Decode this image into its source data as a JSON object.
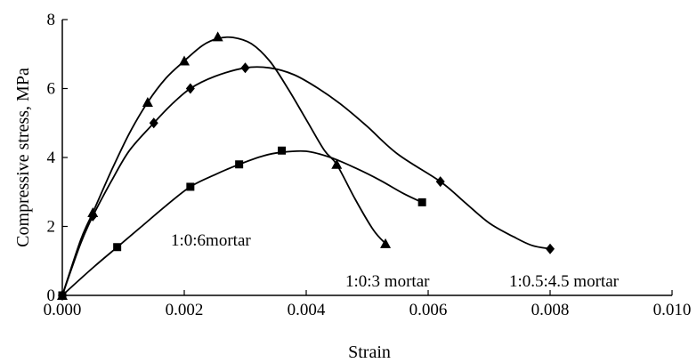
{
  "chart_data": {
    "type": "line",
    "title": "",
    "xlabel": "Strain",
    "ylabel": "Compressive stress, MPa",
    "xlim": [
      0,
      0.01
    ],
    "ylim": [
      0,
      8
    ],
    "x_ticks": [
      "0.000",
      "0.002",
      "0.004",
      "0.006",
      "0.008",
      "0.010"
    ],
    "y_ticks": [
      "0",
      "2",
      "4",
      "6",
      "8"
    ],
    "grid": false,
    "legend": "none",
    "series": [
      {
        "name": "1:0:6mortar",
        "marker": "triangle",
        "points": [
          [
            0,
            0
          ],
          [
            0.0005,
            2.4
          ],
          [
            0.0014,
            5.6
          ],
          [
            0.002,
            6.8
          ],
          [
            0.00255,
            7.5
          ],
          [
            0.0045,
            3.8
          ],
          [
            0.0053,
            1.5
          ]
        ],
        "curve": [
          [
            0,
            0
          ],
          [
            0.0003,
            1.6
          ],
          [
            0.0005,
            2.4
          ],
          [
            0.0008,
            3.6
          ],
          [
            0.0011,
            4.7
          ],
          [
            0.0014,
            5.6
          ],
          [
            0.0017,
            6.3
          ],
          [
            0.002,
            6.8
          ],
          [
            0.0023,
            7.25
          ],
          [
            0.00255,
            7.45
          ],
          [
            0.0028,
            7.48
          ],
          [
            0.0031,
            7.3
          ],
          [
            0.0034,
            6.8
          ],
          [
            0.0037,
            6.0
          ],
          [
            0.004,
            5.1
          ],
          [
            0.0043,
            4.2
          ],
          [
            0.0045,
            3.8
          ],
          [
            0.0048,
            2.8
          ],
          [
            0.0051,
            1.9
          ],
          [
            0.0053,
            1.5
          ]
        ]
      },
      {
        "name": "1:0.5:4.5 mortar",
        "marker": "diamond",
        "points": [
          [
            0,
            0
          ],
          [
            0.0005,
            2.3
          ],
          [
            0.0015,
            5.0
          ],
          [
            0.0021,
            6.0
          ],
          [
            0.003,
            6.6
          ],
          [
            0.0062,
            3.3
          ],
          [
            0.008,
            1.35
          ]
        ],
        "curve": [
          [
            0,
            0
          ],
          [
            0.0003,
            1.5
          ],
          [
            0.0005,
            2.3
          ],
          [
            0.0008,
            3.3
          ],
          [
            0.0011,
            4.2
          ],
          [
            0.0015,
            5.0
          ],
          [
            0.0018,
            5.55
          ],
          [
            0.0021,
            6.0
          ],
          [
            0.0025,
            6.35
          ],
          [
            0.003,
            6.6
          ],
          [
            0.0034,
            6.6
          ],
          [
            0.0038,
            6.4
          ],
          [
            0.0042,
            6.0
          ],
          [
            0.0046,
            5.5
          ],
          [
            0.005,
            4.9
          ],
          [
            0.0055,
            4.1
          ],
          [
            0.0062,
            3.3
          ],
          [
            0.0066,
            2.7
          ],
          [
            0.007,
            2.1
          ],
          [
            0.0074,
            1.7
          ],
          [
            0.0077,
            1.45
          ],
          [
            0.008,
            1.35
          ]
        ]
      },
      {
        "name": "1:0:3 mortar",
        "marker": "square",
        "points": [
          [
            0,
            0
          ],
          [
            0.0009,
            1.4
          ],
          [
            0.0021,
            3.15
          ],
          [
            0.0029,
            3.8
          ],
          [
            0.0036,
            4.2
          ],
          [
            0.0059,
            2.7
          ]
        ],
        "curve": [
          [
            0,
            0
          ],
          [
            0.0005,
            0.8
          ],
          [
            0.0009,
            1.4
          ],
          [
            0.0013,
            2.0
          ],
          [
            0.0017,
            2.6
          ],
          [
            0.0021,
            3.15
          ],
          [
            0.0025,
            3.5
          ],
          [
            0.0029,
            3.8
          ],
          [
            0.0033,
            4.05
          ],
          [
            0.0036,
            4.15
          ],
          [
            0.004,
            4.18
          ],
          [
            0.0044,
            4.0
          ],
          [
            0.0048,
            3.7
          ],
          [
            0.0052,
            3.35
          ],
          [
            0.0056,
            2.95
          ],
          [
            0.0059,
            2.7
          ]
        ]
      }
    ],
    "annotations": [
      {
        "text": "1:0:6mortar",
        "series": "1:0:6mortar"
      },
      {
        "text": "1:0:3 mortar",
        "series": "1:0:3 mortar"
      },
      {
        "text": "1:0.5:4.5 mortar",
        "series": "1:0.5:4.5 mortar"
      }
    ]
  }
}
